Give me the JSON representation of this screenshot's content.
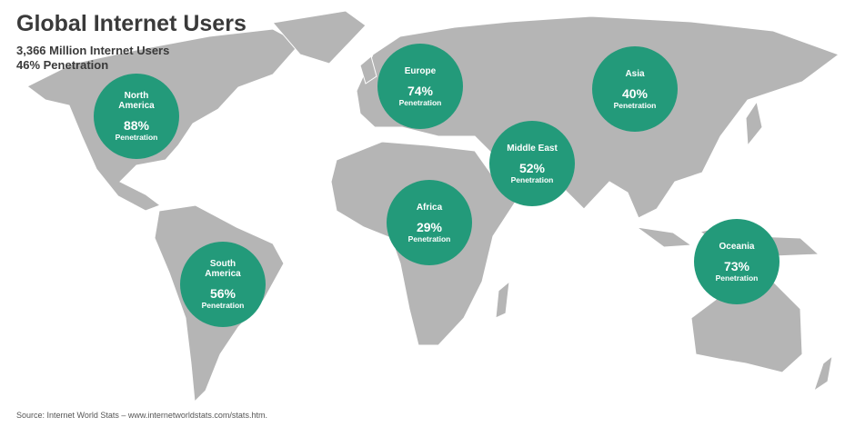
{
  "header": {
    "title": "Global Internet Users",
    "subtitle_lines": [
      "3,366 Million Internet Users",
      "46% Penetration"
    ]
  },
  "regions": [
    {
      "name": "North America",
      "value": "88%",
      "label": "Penetration"
    },
    {
      "name": "Europe",
      "value": "74%",
      "label": "Penetration"
    },
    {
      "name": "Asia",
      "value": "40%",
      "label": "Penetration"
    },
    {
      "name": "Middle East",
      "value": "52%",
      "label": "Penetration"
    },
    {
      "name": "Africa",
      "value": "29%",
      "label": "Penetration"
    },
    {
      "name": "South America",
      "value": "56%",
      "label": "Penetration"
    },
    {
      "name": "Oceania",
      "value": "73%",
      "label": "Penetration"
    }
  ],
  "footer": {
    "source": "Source: Internet World Stats – www.internetworldstats.com/stats.htm."
  }
}
